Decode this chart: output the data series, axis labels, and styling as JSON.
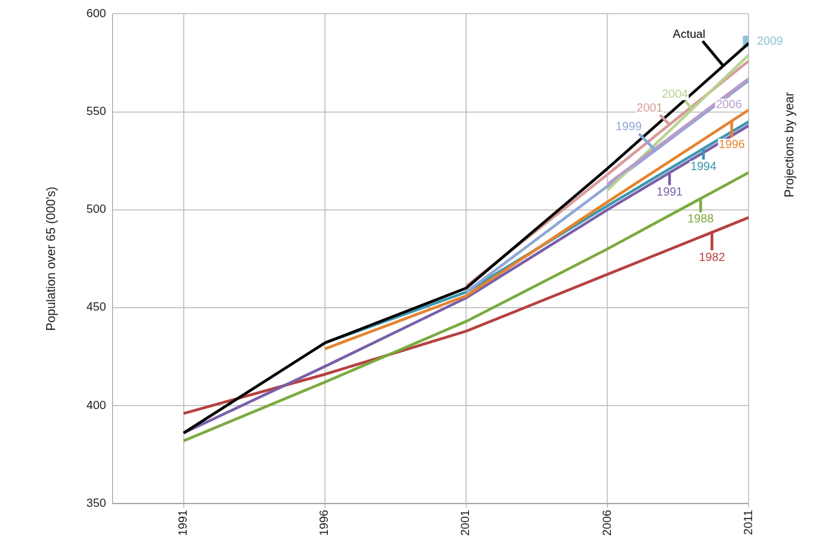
{
  "chart_data": {
    "type": "line",
    "ylabel": "Population over 65 (000's)",
    "legend_title": "Projections by year",
    "xlim": [
      1988.5,
      2011
    ],
    "xticks": [
      1991,
      1996,
      2001,
      2006,
      2011
    ],
    "ylim": [
      350,
      600
    ],
    "yticks": [
      350,
      400,
      450,
      500,
      550,
      600
    ],
    "grid": true,
    "legend": "right",
    "marker": "none",
    "line_style": "solid",
    "series": [
      {
        "name": "1982",
        "color": "#b5403f",
        "x": [
          1991,
          1996,
          2001,
          2006,
          2011
        ],
        "values": [
          396,
          416,
          438,
          467,
          496
        ]
      },
      {
        "name": "1988",
        "color": "#7aaa3e",
        "x": [
          1991,
          1996,
          2001,
          2006,
          2011
        ],
        "values": [
          382,
          412,
          443,
          480,
          519
        ]
      },
      {
        "name": "1991",
        "color": "#7a5ea8",
        "x": [
          1991,
          1996,
          2001,
          2006,
          2011
        ],
        "values": [
          386,
          420,
          455,
          500,
          543
        ]
      },
      {
        "name": "1994",
        "color": "#3a97b0",
        "x": [
          1996,
          2001,
          2006,
          2011
        ],
        "values": [
          432,
          458,
          502,
          545
        ]
      },
      {
        "name": "1996",
        "color": "#e5832e",
        "x": [
          1996,
          2001,
          2006,
          2011
        ],
        "values": [
          429,
          456,
          504,
          551
        ]
      },
      {
        "name": "1999",
        "color": "#8fa6d6",
        "x": [
          2001,
          2006,
          2011
        ],
        "values": [
          458,
          512,
          566
        ]
      },
      {
        "name": "2001",
        "color": "#d99a9a",
        "x": [
          2001,
          2006,
          2011
        ],
        "values": [
          461,
          518,
          576
        ]
      },
      {
        "name": "2004",
        "color": "#b5d38e",
        "x": [
          2006,
          2011
        ],
        "values": [
          510,
          579
        ]
      },
      {
        "name": "2006",
        "color": "#b89cc8",
        "x": [
          2006,
          2011
        ],
        "values": [
          513,
          567
        ]
      },
      {
        "name": "Actual",
        "color": "#000000",
        "x": [
          1991,
          1996,
          2001,
          2006,
          2011
        ],
        "values": [
          386,
          432,
          460,
          521,
          585
        ]
      },
      {
        "name": "2009",
        "type": "scatter",
        "marker": "square",
        "color": "#8fc3d6",
        "x": [
          2011
        ],
        "values": [
          586
        ]
      }
    ]
  }
}
